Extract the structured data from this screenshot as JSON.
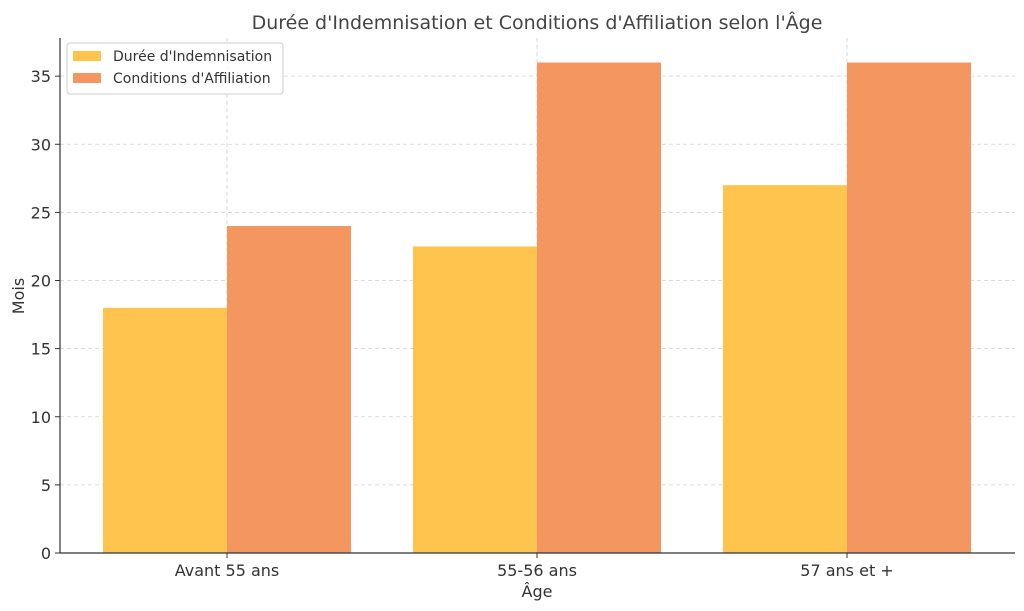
{
  "chart_data": {
    "type": "bar",
    "title": "Durée d'Indemnisation et Conditions d'Affiliation selon l'Âge",
    "xlabel": "Âge",
    "ylabel": "Mois",
    "categories": [
      "Avant 55 ans",
      "55-56 ans",
      "57 ans et +"
    ],
    "series": [
      {
        "name": "Durée d'Indemnisation",
        "values": [
          18,
          22.5,
          27
        ],
        "color": "#FFC44D"
      },
      {
        "name": "Conditions d'Affiliation",
        "values": [
          24,
          36,
          36
        ],
        "color": "#F4965F"
      }
    ],
    "ylim": [
      0,
      37.8
    ],
    "yticks": [
      0,
      5,
      10,
      15,
      20,
      25,
      30,
      35
    ],
    "grid": true,
    "legend_position": "top-left"
  }
}
